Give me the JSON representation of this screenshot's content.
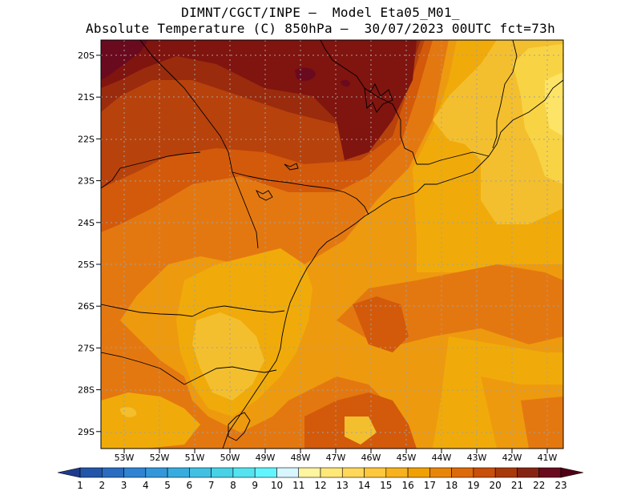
{
  "title": {
    "line1": "DIMNT/CGCT/INPE –  Model Eta05_M01_",
    "line2": "Absolute Temperature (C) 850hPa –  30/07/2023 00UTC fct=73h"
  },
  "map": {
    "lon_labels": [
      "53W",
      "52W",
      "51W",
      "50W",
      "49W",
      "48W",
      "47W",
      "46W",
      "45W",
      "44W",
      "43W",
      "42W",
      "41W"
    ],
    "lat_labels": [
      "20S",
      "21S",
      "22S",
      "23S",
      "24S",
      "25S",
      "26S",
      "27S",
      "28S",
      "29S"
    ]
  },
  "colorbar": {
    "labels": [
      "1",
      "2",
      "3",
      "4",
      "5",
      "6",
      "7",
      "8",
      "9",
      "10",
      "11",
      "12",
      "13",
      "14",
      "15",
      "16",
      "17",
      "18",
      "19",
      "20",
      "21",
      "22",
      "23"
    ],
    "colors": [
      "#1e3c8c",
      "#2356a8",
      "#2a6cc0",
      "#2f83d2",
      "#3497da",
      "#39acdf",
      "#41c0e3",
      "#47d2e8",
      "#55e3f0",
      "#63f5ff",
      "#d8f6ff",
      "#fff4a0",
      "#ffe878",
      "#ffd85a",
      "#ffc83c",
      "#f7b21e",
      "#f0a000",
      "#e8860a",
      "#dd6a0a",
      "#c94f0a",
      "#a83a0a",
      "#862414",
      "#6a0a1e",
      "#500016"
    ]
  },
  "palette": {
    "t23": "#6a0a1e",
    "t22": "#80140f",
    "t21": "#9a2b0d",
    "t20": "#b8420c",
    "t19": "#d35a0a",
    "t18": "#e47810",
    "t17": "#ee9a0e",
    "t16": "#f0ab0a",
    "t15": "#f4bf2e",
    "t14": "#f8d444",
    "t13": "#fde466"
  }
}
